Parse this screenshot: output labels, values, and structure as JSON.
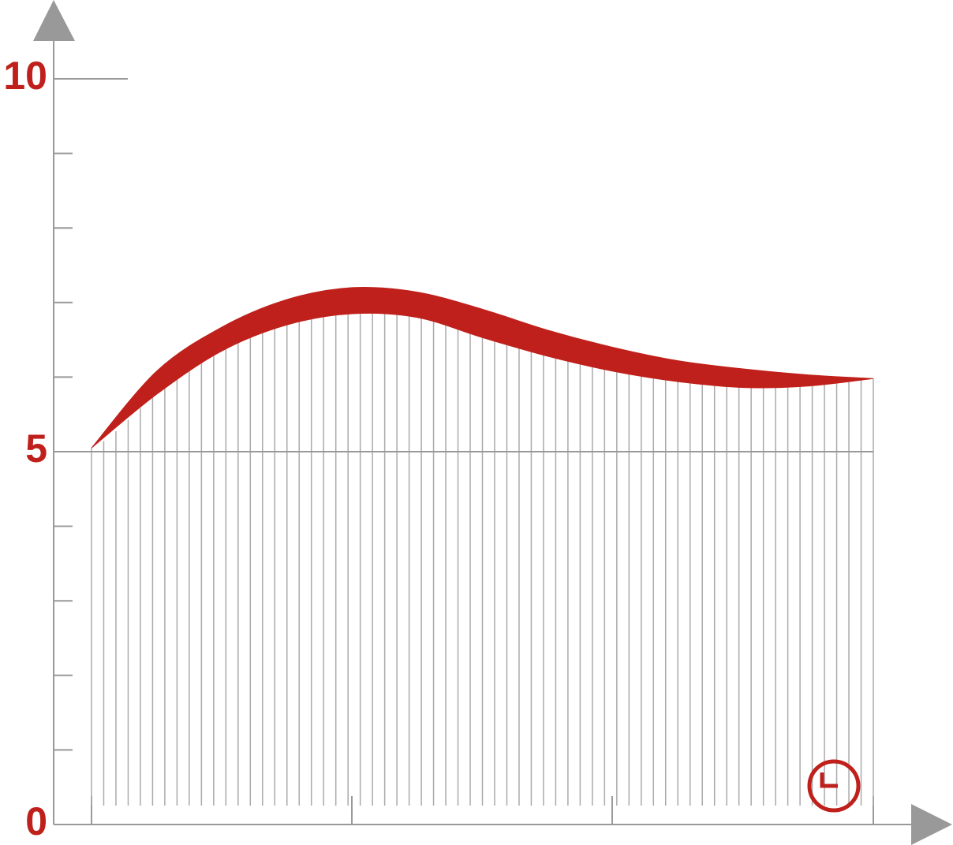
{
  "chart_data": {
    "type": "band",
    "series": [
      {
        "color": "#c0201b",
        "values": [
          5.05,
          6.08,
          6.67,
          7.04,
          7.2,
          7.14,
          6.91,
          6.63,
          6.4,
          6.22,
          6.11,
          6.03,
          5.98
        ]
      },
      {
        "color": "#c0201b",
        "values": [
          5.05,
          5.77,
          6.35,
          6.7,
          6.85,
          6.8,
          6.53,
          6.28,
          6.08,
          5.94,
          5.86,
          5.88,
          5.98
        ]
      }
    ],
    "ylim": [
      0,
      10
    ],
    "yticks": [
      0,
      5,
      10
    ],
    "yminorticks": [
      1,
      2,
      3,
      4,
      6,
      7,
      8,
      9
    ],
    "tick_color": "#c0201b"
  }
}
